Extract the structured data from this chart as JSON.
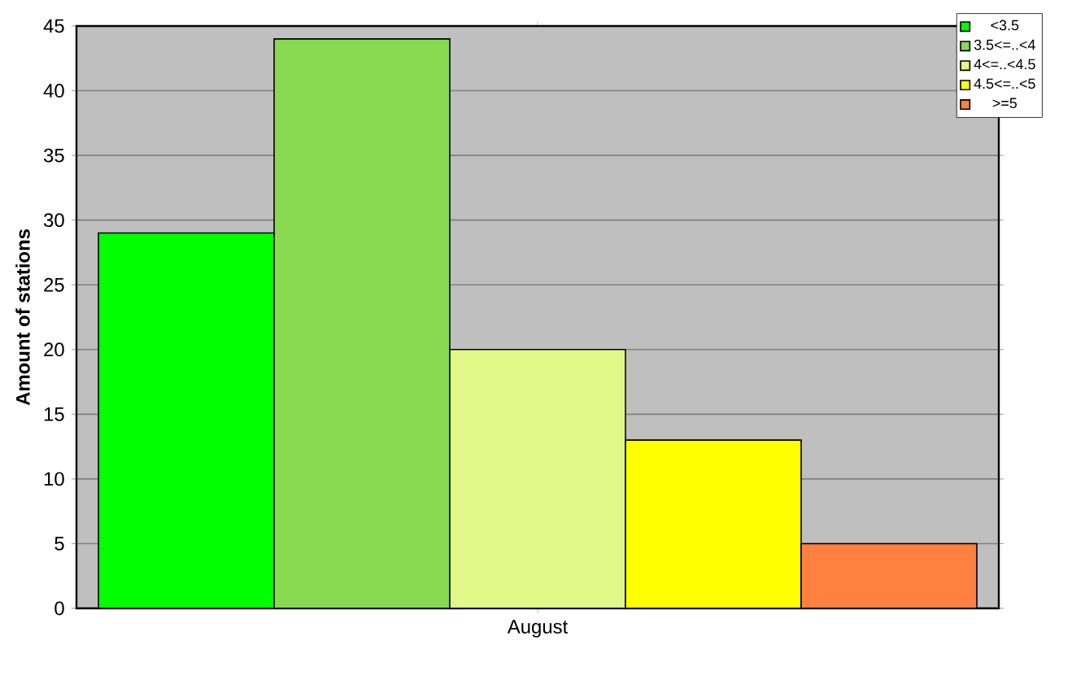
{
  "chart_data": {
    "type": "bar",
    "ylabel": "Amount of stations",
    "categories": [
      "August"
    ],
    "series": [
      {
        "name": "<3.5",
        "color": "#00ff00",
        "values": [
          29
        ]
      },
      {
        "name": "3.5<=..<4",
        "color": "#88d850",
        "values": [
          44
        ]
      },
      {
        "name": "4<=..<4.5",
        "color": "#e0f888",
        "values": [
          20
        ]
      },
      {
        "name": "4.5<=..<5",
        "color": "#ffff00",
        "values": [
          13
        ]
      },
      {
        "name": ">=5",
        "color": "#ff8040",
        "values": [
          5
        ]
      }
    ],
    "ylim": [
      0,
      45
    ],
    "yticks": [
      0,
      5,
      10,
      15,
      20,
      25,
      30,
      35,
      40,
      45
    ],
    "grid": "y",
    "legend": "top right"
  }
}
